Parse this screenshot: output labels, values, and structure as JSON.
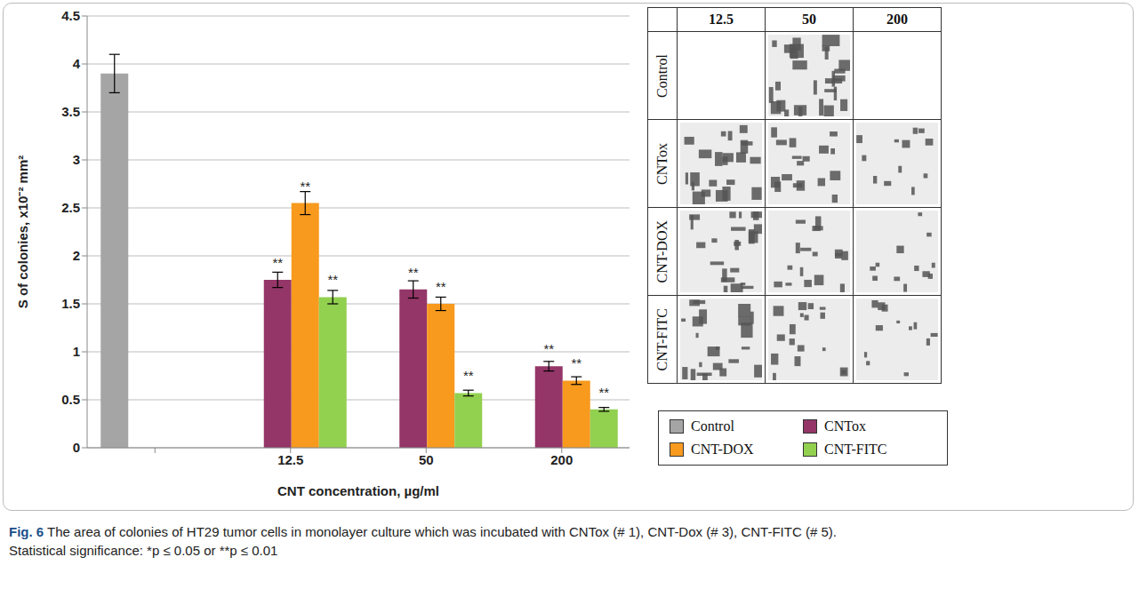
{
  "chart_data": {
    "type": "bar",
    "x_label": "CNT concentration, µg/ml",
    "y_label": "S of colonies, x10⁻² mm²",
    "categories": [
      null,
      "12.5",
      "50",
      "200"
    ],
    "series": [
      {
        "name": "Control",
        "color": "#a5a5a5",
        "values": [
          3.9,
          null,
          null,
          null
        ],
        "errors": [
          0.2,
          null,
          null,
          null
        ],
        "annotations": [
          null,
          null,
          null,
          null
        ]
      },
      {
        "name": "CNTox",
        "color": "#943668",
        "values": [
          null,
          1.75,
          1.65,
          0.85
        ],
        "errors": [
          null,
          0.08,
          0.09,
          0.05
        ],
        "annotations": [
          null,
          "**",
          "**",
          "**"
        ]
      },
      {
        "name": "CNT-DOX",
        "color": "#f79a1e",
        "values": [
          null,
          2.55,
          1.5,
          0.7
        ],
        "errors": [
          null,
          0.12,
          0.07,
          0.04
        ],
        "annotations": [
          null,
          "**",
          "**",
          "**"
        ]
      },
      {
        "name": "CNT-FITC",
        "color": "#92d050",
        "values": [
          null,
          1.57,
          0.57,
          0.4
        ],
        "errors": [
          null,
          0.07,
          0.03,
          0.02
        ],
        "annotations": [
          null,
          "**",
          "**",
          "**"
        ]
      }
    ],
    "ylim": [
      0,
      4.5
    ],
    "yticks": [
      0,
      0.5,
      1,
      1.5,
      2,
      2.5,
      3,
      3.5,
      4,
      4.5
    ],
    "grid": true,
    "legend": "bottom-right"
  },
  "image_grid": {
    "columns": [
      "12.5",
      "50",
      "200"
    ],
    "rows": [
      "Control",
      "CNTox",
      "CNT-DOX",
      "CNT-FITC"
    ],
    "images": [
      [
        false,
        true,
        false
      ],
      [
        true,
        true,
        true
      ],
      [
        true,
        true,
        true
      ],
      [
        true,
        true,
        true
      ]
    ]
  },
  "caption": {
    "label": "Fig. 6",
    "text": "The area of colonies of HT29 tumor cells in monolayer culture which was incubated with CNTox (# 1), CNT-Dox (# 3), CNT-FITC (# 5).",
    "note": "Statistical significance: *p ≤ 0.05 or **p ≤ 0.01"
  }
}
